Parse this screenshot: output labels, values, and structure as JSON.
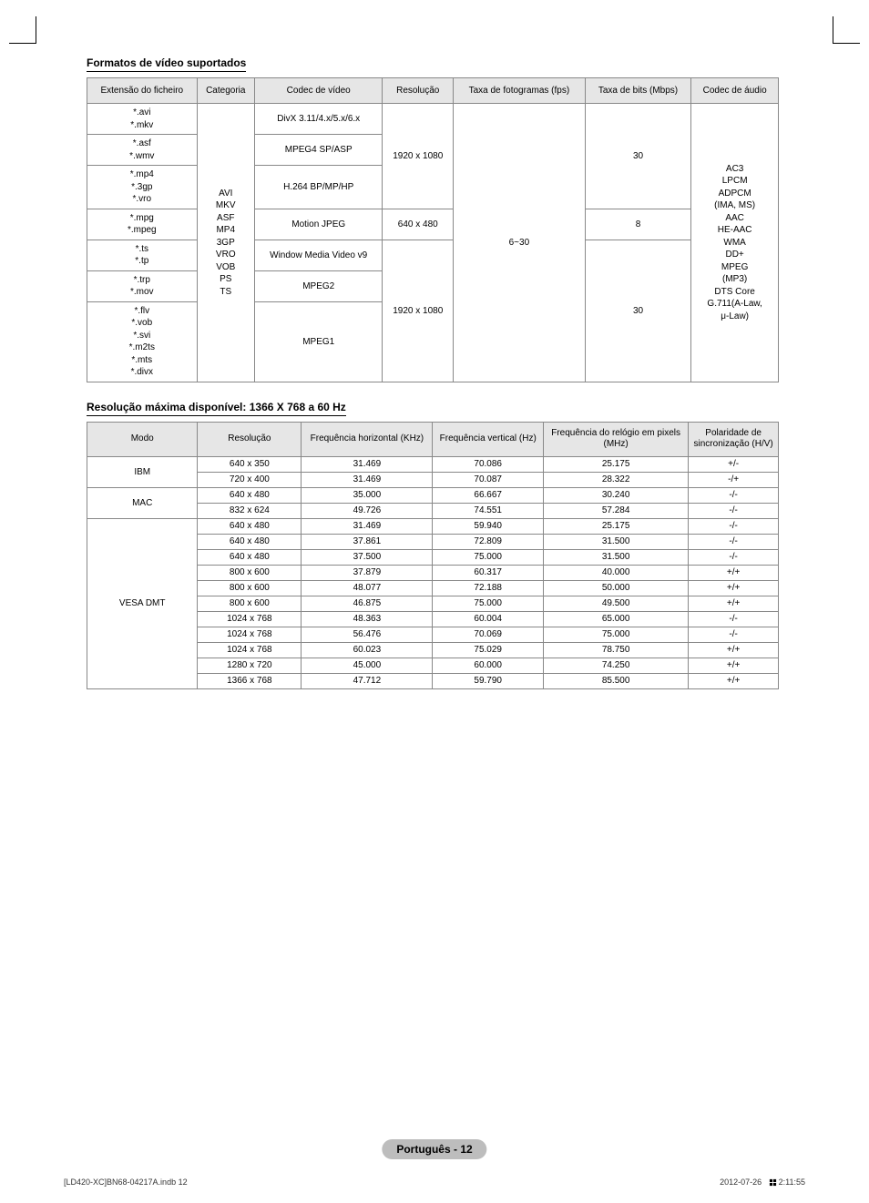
{
  "section1": {
    "title": "Formatos de vídeo suportados",
    "headers": [
      "Extensão do ficheiro",
      "Categoria",
      "Codec de vídeo",
      "Resolução",
      "Taxa de fotogramas (fps)",
      "Taxa de bits (Mbps)",
      "Codec de áudio"
    ],
    "ext_groups": [
      "*.avi\n*.mkv",
      "*.asf\n*.wmv",
      "*.mp4\n*.3gp\n*.vro",
      "*.mpg\n*.mpeg",
      "*.ts\n*.tp",
      "*.trp\n*.mov",
      "*.flv\n*.vob\n*.svi\n*.m2ts\n*.mts\n*.divx"
    ],
    "categoria": "AVI\nMKV\nASF\nMP4\n3GP\nVRO\nVOB\nPS\nTS",
    "codecs": [
      "DivX 3.11/4.x/5.x/6.x",
      "MPEG4 SP/ASP",
      "H.264 BP/MP/HP",
      "Motion JPEG",
      "Window Media Video v9",
      "MPEG2",
      "MPEG1"
    ],
    "res_group1": "1920 x 1080",
    "res_group2": "640 x 480",
    "res_group3": "1920 x 1080",
    "fps": "6~30",
    "bit1": "30",
    "bit2": "8",
    "bit3": "30",
    "audio": "AC3\nLPCM\nADPCM\n(IMA, MS)\nAAC\nHE-AAC\nWMA\nDD+\nMPEG\n(MP3)\nDTS Core\nG.711(A-Law,\nμ-Law)"
  },
  "section2": {
    "title": "Resolução máxima disponível: 1366 X 768 a 60 Hz",
    "headers": [
      "Modo",
      "Resolução",
      "Frequência horizontal (KHz)",
      "Frequência vertical (Hz)",
      "Frequência do relógio em pixels (MHz)",
      "Polaridade de sincronização (H/V)"
    ],
    "groups": [
      {
        "mode": "IBM",
        "rows": [
          [
            "640 x 350",
            "31.469",
            "70.086",
            "25.175",
            "+/-"
          ],
          [
            "720 x 400",
            "31.469",
            "70.087",
            "28.322",
            "-/+"
          ]
        ]
      },
      {
        "mode": "MAC",
        "rows": [
          [
            "640 x 480",
            "35.000",
            "66.667",
            "30.240",
            "-/-"
          ],
          [
            "832 x 624",
            "49.726",
            "74.551",
            "57.284",
            "-/-"
          ]
        ]
      },
      {
        "mode": "VESA DMT",
        "rows": [
          [
            "640 x 480",
            "31.469",
            "59.940",
            "25.175",
            "-/-"
          ],
          [
            "640 x 480",
            "37.861",
            "72.809",
            "31.500",
            "-/-"
          ],
          [
            "640 x 480",
            "37.500",
            "75.000",
            "31.500",
            "-/-"
          ],
          [
            "800 x 600",
            "37.879",
            "60.317",
            "40.000",
            "+/+"
          ],
          [
            "800 x 600",
            "48.077",
            "72.188",
            "50.000",
            "+/+"
          ],
          [
            "800 x 600",
            "46.875",
            "75.000",
            "49.500",
            "+/+"
          ],
          [
            "1024 x 768",
            "48.363",
            "60.004",
            "65.000",
            "-/-"
          ],
          [
            "1024 x 768",
            "56.476",
            "70.069",
            "75.000",
            "-/-"
          ],
          [
            "1024 x 768",
            "60.023",
            "75.029",
            "78.750",
            "+/+"
          ],
          [
            "1280 x 720",
            "45.000",
            "60.000",
            "74.250",
            "+/+"
          ],
          [
            "1366 x 768",
            "47.712",
            "59.790",
            "85.500",
            "+/+"
          ]
        ]
      }
    ]
  },
  "footer": {
    "pageBadge": "Português - 12",
    "left": "[LD420-XC]BN68-04217A.indb   12",
    "rightDate": "2012-07-26",
    "rightTime": "2:11:55"
  }
}
